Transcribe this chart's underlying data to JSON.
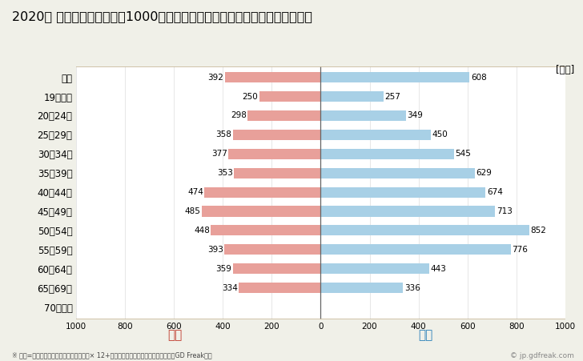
{
  "title": "2020年 民間企業（従業者数1000人以上）フルタイム労働者の男女別平均年収",
  "ylabel_unit": "[万円]",
  "categories": [
    "全体",
    "19歳以下",
    "20〜24歳",
    "25〜29歳",
    "30〜34歳",
    "35〜39歳",
    "40〜44歳",
    "45〜49歳",
    "50〜54歳",
    "55〜59歳",
    "60〜64歳",
    "65〜69歳",
    "70歳以上"
  ],
  "female_values": [
    392,
    250,
    298,
    358,
    377,
    353,
    474,
    485,
    448,
    393,
    359,
    334,
    0
  ],
  "male_values": [
    608,
    257,
    349,
    450,
    545,
    629,
    674,
    713,
    852,
    776,
    443,
    336,
    0
  ],
  "female_color": "#e8a09a",
  "male_color": "#a8d0e6",
  "female_label": "女性",
  "male_label": "男性",
  "female_label_color": "#c0392b",
  "male_label_color": "#2980b9",
  "xlim": 1000,
  "footnote": "※ 年収=「きまって支給する現金給与額」× 12+「年間賞与その他特別給与額」としてGD Freak推計",
  "watermark": "© jp.gdfreak.com",
  "background_color": "#f0f0e8",
  "plot_bg_color": "#ffffff",
  "border_color": "#c8b89a",
  "grid_color": "#dddddd",
  "title_fontsize": 11.5,
  "bar_height": 0.55,
  "value_fontsize": 7.5,
  "ytick_fontsize": 8.5,
  "xtick_fontsize": 7.5
}
